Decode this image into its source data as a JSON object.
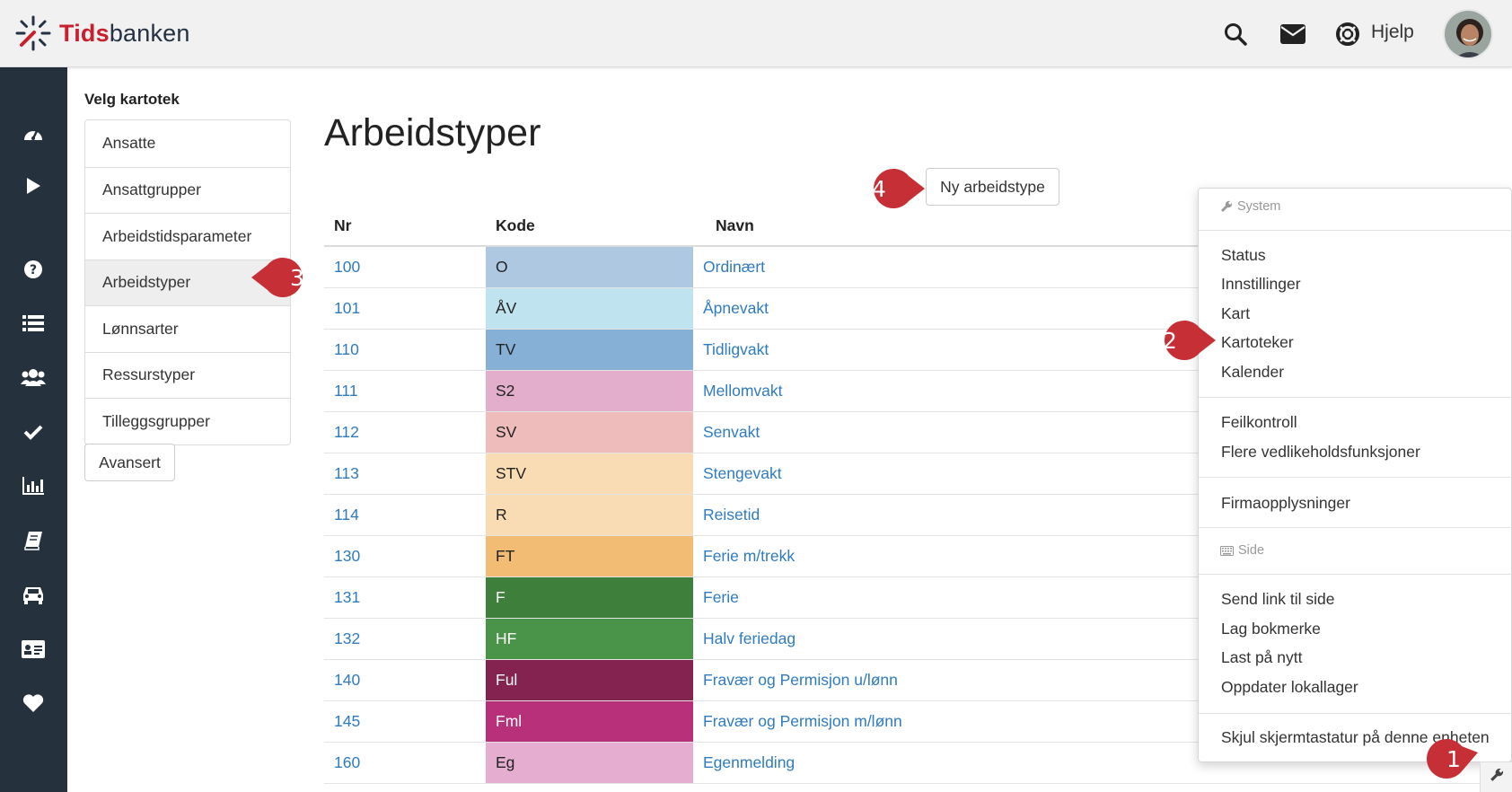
{
  "brand": {
    "name_part1": "Tids",
    "name_part2": "banken",
    "accent_color": "#c8202f"
  },
  "header": {
    "help_label": "Hjelp",
    "icons": [
      "search-icon",
      "envelope-icon",
      "lifebuoy-icon"
    ]
  },
  "rail": {
    "icons": [
      "dashboard-icon",
      "play-icon",
      "help-circle-icon",
      "list-icon",
      "users-icon",
      "check-icon",
      "bar-chart-icon",
      "book-icon",
      "car-icon",
      "id-card-icon",
      "heart-icon"
    ]
  },
  "file_cabinet": {
    "title": "Velg kartotek",
    "items": [
      "Ansatte",
      "Ansattgrupper",
      "Arbeidstidsparameter",
      "Arbeidstyper",
      "Lønnsarter",
      "Ressurstyper",
      "Tilleggsgrupper"
    ],
    "active": "Arbeidstyper",
    "advanced_label": "Avansert"
  },
  "main": {
    "title": "Arbeidstyper",
    "new_button_label": "Ny arbeidstype",
    "columns": {
      "nr": "Nr",
      "kode": "Kode",
      "navn": "Navn"
    },
    "rows": [
      {
        "nr": "100",
        "kode": "O",
        "navn": "Ordinært",
        "color": "#aec8e2",
        "text_color": "#222"
      },
      {
        "nr": "101",
        "kode": "ÅV",
        "navn": "Åpnevakt",
        "color": "#bfe3ef",
        "text_color": "#222"
      },
      {
        "nr": "110",
        "kode": "TV",
        "navn": "Tidligvakt",
        "color": "#86b0d6",
        "text_color": "#222"
      },
      {
        "nr": "111",
        "kode": "S2",
        "navn": "Mellomvakt",
        "color": "#e3aecb",
        "text_color": "#222"
      },
      {
        "nr": "112",
        "kode": "SV",
        "navn": "Senvakt",
        "color": "#efbcbc",
        "text_color": "#222"
      },
      {
        "nr": "113",
        "kode": "STV",
        "navn": "Stengevakt",
        "color": "#f9dcb3",
        "text_color": "#222"
      },
      {
        "nr": "114",
        "kode": "R",
        "navn": "Reisetid",
        "color": "#f9dcb3",
        "text_color": "#222"
      },
      {
        "nr": "130",
        "kode": "FT",
        "navn": "Ferie m/trekk",
        "color": "#f2bc74",
        "text_color": "#222"
      },
      {
        "nr": "131",
        "kode": "F",
        "navn": "Ferie",
        "color": "#3f7f3c",
        "text_color": "#ffffff"
      },
      {
        "nr": "132",
        "kode": "HF",
        "navn": "Halv feriedag",
        "color": "#4a9449",
        "text_color": "#ffffff"
      },
      {
        "nr": "140",
        "kode": "Ful",
        "navn": "Fravær og Permisjon u/lønn",
        "color": "#842350",
        "text_color": "#ffffff"
      },
      {
        "nr": "145",
        "kode": "Fml",
        "navn": "Fravær og Permisjon m/lønn",
        "color": "#b8307a",
        "text_color": "#ffffff"
      },
      {
        "nr": "160",
        "kode": "Eg",
        "navn": "Egenmelding",
        "color": "#e5aed0",
        "text_color": "#222"
      }
    ]
  },
  "system_menu": {
    "system_header": "System",
    "items_group1": [
      "Status",
      "Innstillinger",
      "Kart",
      "Kartoteker",
      "Kalender"
    ],
    "items_group2": [
      "Feilkontroll",
      "Flere vedlikeholdsfunksjoner"
    ],
    "items_group3": [
      "Firmaopplysninger"
    ],
    "side_header": "Side",
    "items_group4": [
      "Send link til side",
      "Lag bokmerke",
      "Last på nytt",
      "Oppdater lokallager"
    ],
    "items_group5": [
      "Skjul skjermtastatur på denne enheten"
    ]
  },
  "callouts": [
    "1",
    "2",
    "3",
    "4"
  ]
}
